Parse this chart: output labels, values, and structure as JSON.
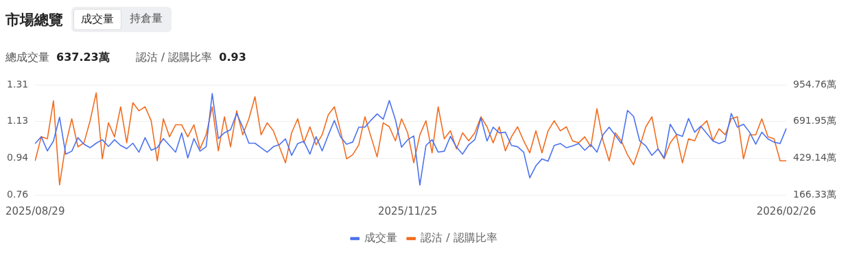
{
  "chart_data": {
    "type": "line",
    "title": "市場總覽",
    "annotations": [
      "成交量",
      "持倉量",
      "總成交量",
      "637.23萬",
      "認沽 / 認購比率",
      "0.93"
    ],
    "categories": [
      "2025/08/29",
      null,
      null,
      null,
      null,
      null,
      null,
      null,
      null,
      null,
      null,
      null,
      null,
      null,
      null,
      null,
      null,
      null,
      null,
      null,
      null,
      null,
      null,
      null,
      null,
      null,
      null,
      null,
      null,
      null,
      null,
      null,
      null,
      null,
      null,
      null,
      null,
      null,
      null,
      null,
      null,
      null,
      null,
      null,
      null,
      null,
      null,
      null,
      null,
      null,
      null,
      null,
      null,
      null,
      null,
      null,
      null,
      null,
      null,
      null,
      null,
      "2025/11/25",
      null,
      null,
      null,
      null,
      null,
      null,
      null,
      null,
      null,
      null,
      null,
      null,
      null,
      null,
      null,
      null,
      null,
      null,
      null,
      null,
      null,
      null,
      null,
      null,
      null,
      null,
      null,
      null,
      null,
      null,
      null,
      null,
      null,
      null,
      null,
      null,
      null,
      null,
      null,
      null,
      null,
      null,
      null,
      null,
      null,
      null,
      null,
      null,
      null,
      null,
      null,
      null,
      null,
      null,
      null,
      null,
      null,
      null,
      null,
      null,
      null,
      "2026/02/26"
    ],
    "series": [
      {
        "name": "成交量",
        "color": "#4b72ee",
        "axis": "y2",
        "values": [
          534,
          583,
          481,
          552,
          722,
          458,
          479,
          576,
          529,
          504,
          536,
          561,
          513,
          561,
          520,
          497,
          536,
          472,
          576,
          486,
          504,
          569,
          520,
          472,
          610,
          431,
          569,
          479,
          511,
          892,
          569,
          611,
          633,
          749,
          651,
          536,
          536,
          504,
          472,
          511,
          526,
          567,
          449,
          534,
          549,
          458,
          583,
          481,
          594,
          699,
          583,
          529,
          544,
          651,
          651,
          701,
          746,
          708,
          842,
          704,
          508,
          561,
          588,
          236,
          520,
          561,
          472,
          479,
          585,
          508,
          458,
          526,
          561,
          717,
          552,
          651,
          610,
          615,
          520,
          511,
          472,
          288,
          374,
          424,
          408,
          520,
          534,
          504,
          517,
          534,
          486,
          526,
          472,
          597,
          651,
          594,
          534,
          771,
          728,
          552,
          517,
          449,
          495,
          431,
          672,
          601,
          585,
          713,
          615,
          658,
          606,
          552,
          534,
          552,
          749,
          651,
          672,
          615,
          529,
          615,
          567,
          544,
          534,
          642
        ]
      },
      {
        "name": "認沽 / 認購比率",
        "color": "#f26b1d",
        "values": [
          0.93,
          1.05,
          1.04,
          1.23,
          0.81,
          1.01,
          1.14,
          1.0,
          1.02,
          1.13,
          1.27,
          0.94,
          1.12,
          1.05,
          1.2,
          1.02,
          1.22,
          1.18,
          1.2,
          1.13,
          0.93,
          1.14,
          1.05,
          1.11,
          1.11,
          1.05,
          1.11,
          0.99,
          1.06,
          1.2,
          0.98,
          1.15,
          1.0,
          1.18,
          1.06,
          1.14,
          1.25,
          1.06,
          1.12,
          1.08,
          1.0,
          0.92,
          1.07,
          1.14,
          1.02,
          1.1,
          1.01,
          1.06,
          1.16,
          1.2,
          1.08,
          0.94,
          0.96,
          1.01,
          1.15,
          1.05,
          0.95,
          1.12,
          1.1,
          1.03,
          1.14,
          1.07,
          0.92,
          1.06,
          1.13,
          0.97,
          1.2,
          1.04,
          1.08,
          0.99,
          1.07,
          1.03,
          1.07,
          1.15,
          1.1,
          1.02,
          1.1,
          0.98,
          1.05,
          1.1,
          1.03,
          0.97,
          1.08,
          0.97,
          1.08,
          1.13,
          1.08,
          1.1,
          1.03,
          1.02,
          1.05,
          1.0,
          1.19,
          1.03,
          0.93,
          1.07,
          1.03,
          0.96,
          0.91,
          1.0,
          1.1,
          1.15,
          0.99,
          0.94,
          1.02,
          1.06,
          0.92,
          1.04,
          1.03,
          1.1,
          1.13,
          1.03,
          1.09,
          1.06,
          1.14,
          1.15,
          0.94,
          1.06,
          1.06,
          1.14,
          1.05,
          1.04,
          0.93,
          0.93
        ]
      }
    ],
    "ylim": [
      0.76,
      1.31
    ],
    "yticks": [
      0.76,
      {
        "value": 0.9433,
        "label": "0.94"
      },
      {
        "value": 1.1267,
        "label": "1.13"
      },
      1.31
    ],
    "y2lim": [
      166.33,
      954.76
    ],
    "y2ticks": [
      {
        "value": 166.33,
        "label": "166.33萬"
      },
      {
        "value": 429.14,
        "label": "429.14萬"
      },
      {
        "value": 691.95,
        "label": "691.95萬"
      },
      {
        "value": 954.76,
        "label": "954.76萬"
      }
    ],
    "grid": "y",
    "legend": "bottom",
    "marker": "none",
    "line_style": "solid"
  }
}
